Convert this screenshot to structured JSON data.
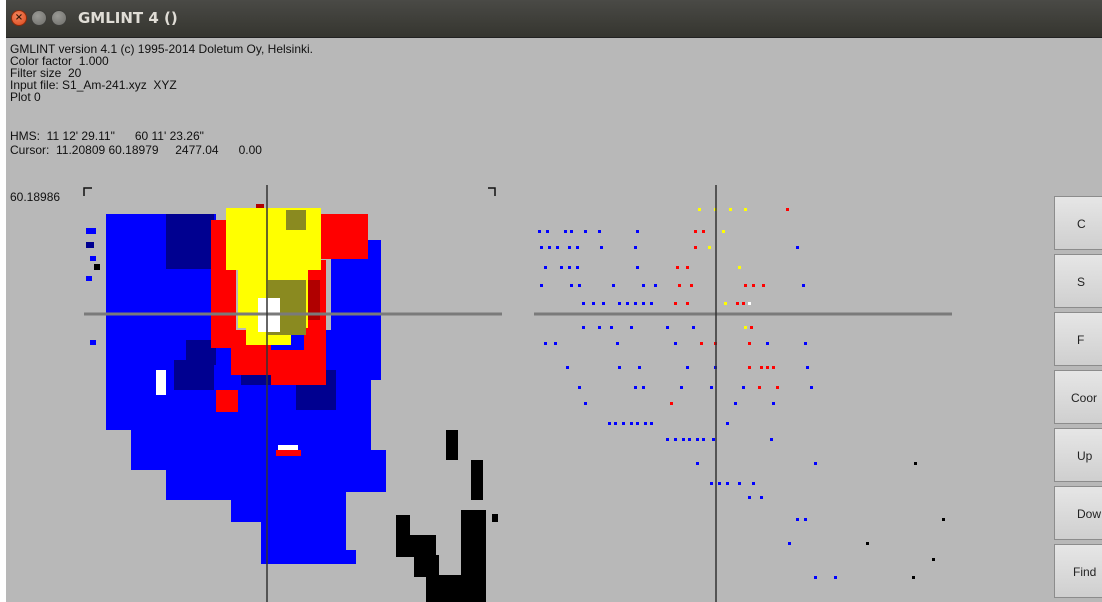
{
  "window": {
    "title": "GMLINT 4 ()",
    "close_icon": "close-icon",
    "minimize_icon": "minimize-icon",
    "maximize_icon": "maximize-icon"
  },
  "info": {
    "version": "GMLINT version 4.1 (c) 1995-2014 Doletum Oy, Helsinki.",
    "color_factor": "Color factor  1.000",
    "filter_size": "Filter size  20",
    "input_file": "Input file: S1_Am-241.xyz  XYZ",
    "plot": "Plot 0",
    "hms": "HMS:  11 12' 29.11\"      60 11' 23.26\"",
    "cursor": "Cursor:  11.20809 60.18979     2477.04      0.00",
    "coord_label": "60.18986"
  },
  "colors": {
    "blue": "#0000ff",
    "navy": "#000090",
    "red": "#ff0000",
    "darkred": "#b00000",
    "yellow": "#ffff00",
    "olive": "#7a7a10",
    "black": "#000000",
    "white": "#ffffff",
    "background": "#b8b8b8",
    "crosshair": "#808080"
  },
  "side_buttons": [
    "C",
    "S",
    "F",
    "Coor",
    "Up",
    "Dow",
    "Find"
  ]
}
